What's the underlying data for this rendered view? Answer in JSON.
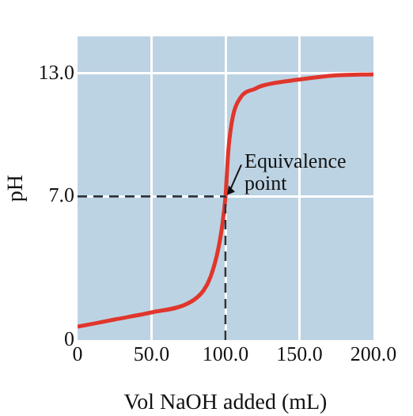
{
  "chart_data": {
    "type": "line",
    "xlabel": "Vol NaOH added (mL)",
    "ylabel": "pH",
    "x": [
      0,
      25,
      50,
      75,
      85,
      90,
      95,
      98,
      100,
      102,
      105,
      110,
      120,
      125,
      150,
      175,
      200
    ],
    "series": [
      {
        "color": "#e0362c",
        "values": [
          0.65,
          1.0,
          1.35,
          1.8,
          2.4,
          3.1,
          4.4,
          5.7,
          7.0,
          9.3,
          10.9,
          11.8,
          12.25,
          12.4,
          12.7,
          12.9,
          12.95
        ]
      }
    ],
    "xlim": [
      0,
      200
    ],
    "xticks": [
      0,
      {
        "value": 50,
        "label": "50.0"
      },
      {
        "value": 100,
        "label": "100.0"
      },
      {
        "value": 150,
        "label": "150.0"
      },
      {
        "value": 200,
        "label": "200.0"
      }
    ],
    "ylim": [
      0,
      14.8
    ],
    "yticks": [
      0,
      {
        "value": 7,
        "label": "7.0"
      },
      {
        "value": 13,
        "label": "13.0"
      }
    ],
    "ref_lines": [
      {
        "axis": "y",
        "value": 7,
        "color": "#2a3340",
        "line_style": "dashed"
      },
      {
        "axis": "x",
        "value": 100,
        "color": "#2a3340",
        "line_style": "dashed"
      }
    ],
    "annotations": [
      {
        "text": "Equivalence\npoint",
        "x": 100,
        "y": 7
      }
    ],
    "grid": true,
    "legend": false,
    "marker": "none",
    "line_style": "solid"
  }
}
